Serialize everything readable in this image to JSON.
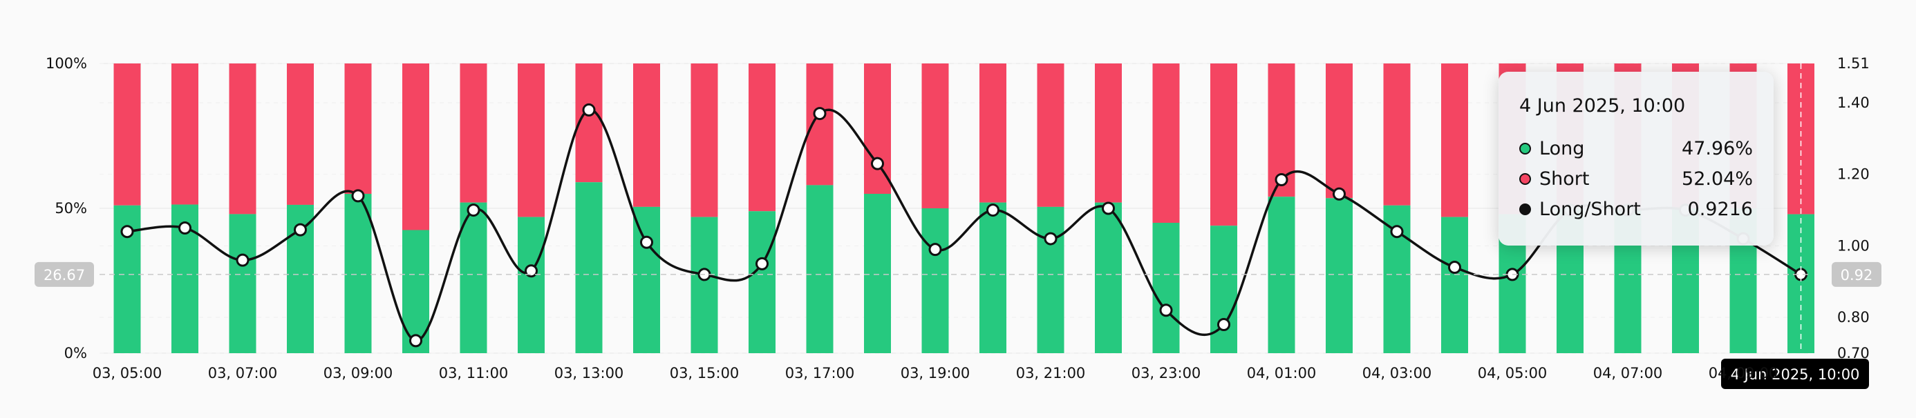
{
  "chart_data": {
    "type": "bar",
    "title": "",
    "x_tick_labels": [
      "03, 05:00",
      "03, 07:00",
      "03, 09:00",
      "03, 11:00",
      "03, 13:00",
      "03, 15:00",
      "03, 17:00",
      "03, 19:00",
      "03, 21:00",
      "03, 23:00",
      "04, 01:00",
      "04, 03:00",
      "04, 05:00",
      "04, 07:00",
      "04, 09:00"
    ],
    "left_axis": {
      "ticks": [
        "0%",
        "50%",
        "100%"
      ],
      "range": [
        0,
        100
      ]
    },
    "right_axis": {
      "ticks": [
        "0.70",
        "0.80",
        "1.00",
        "1.20",
        "1.40",
        "1.51"
      ],
      "range": [
        0.7,
        1.51
      ]
    },
    "series": [
      {
        "name": "Long",
        "color": "#26c97f",
        "values": [
          51.0,
          51.3,
          48.0,
          51.2,
          55.0,
          42.5,
          52.0,
          47.0,
          59.0,
          50.5,
          47.0,
          49.0,
          58.0,
          55.0,
          50.0,
          52.0,
          50.5,
          52.0,
          45.0,
          44.0,
          54.0,
          53.5,
          51.0,
          47.0,
          47.96,
          50.0,
          50.0,
          50.0,
          50.0,
          47.96
        ]
      },
      {
        "name": "Short",
        "color": "#f44562",
        "values": [
          49.0,
          48.7,
          52.0,
          48.8,
          45.0,
          57.5,
          48.0,
          53.0,
          41.0,
          49.5,
          53.0,
          51.0,
          42.0,
          45.0,
          50.0,
          48.0,
          49.5,
          48.0,
          55.0,
          56.0,
          46.0,
          46.5,
          49.0,
          53.0,
          52.04,
          50.0,
          50.0,
          50.0,
          50.0,
          52.04
        ]
      },
      {
        "name": "Long/Short",
        "color": "#111111",
        "axis": "right",
        "values": [
          1.04,
          1.05,
          0.96,
          1.045,
          1.14,
          0.735,
          1.1,
          0.93,
          1.38,
          1.01,
          0.92,
          0.95,
          1.37,
          1.23,
          0.99,
          1.1,
          1.02,
          1.105,
          0.82,
          0.78,
          1.185,
          1.145,
          1.04,
          0.94,
          0.92,
          1.1,
          1.1,
          1.1,
          1.02,
          0.92
        ]
      }
    ],
    "crosshair": {
      "left_label": "26.67",
      "right_label": "0.92",
      "x_label": "4 Jun 2025, 10:00"
    },
    "tooltip": {
      "title": "4 Jun 2025, 10:00",
      "rows": [
        {
          "name": "Long",
          "value": "47.96%",
          "color": "#26c97f"
        },
        {
          "name": "Short",
          "value": "52.04%",
          "color": "#f44562"
        },
        {
          "name": "Long/Short",
          "value": "0.9216",
          "color": "#111111"
        }
      ]
    },
    "grid": true,
    "legend": "none"
  }
}
